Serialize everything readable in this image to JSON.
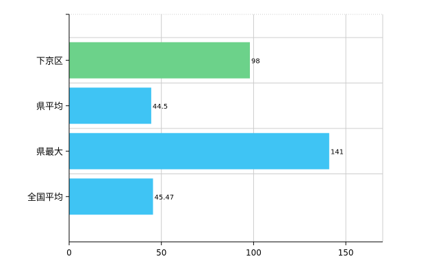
{
  "chart_data": {
    "type": "bar",
    "orientation": "horizontal",
    "categories": [
      "下京区",
      "県平均",
      "県最大",
      "全国平均"
    ],
    "values": [
      98,
      44.5,
      141,
      45.47
    ],
    "value_labels": [
      "98",
      "44.5",
      "141",
      "45.47"
    ],
    "xlim": [
      0,
      170
    ],
    "x_ticks": [
      0,
      50,
      100,
      150
    ],
    "x_tick_labels": [
      "0",
      "50",
      "100",
      "150"
    ],
    "title": "",
    "xlabel": "",
    "ylabel": "",
    "grid": true,
    "grid_style": "x-solid, y-solid, top-dotted",
    "legend": "none",
    "colors": {
      "highlight": "#6cd28a",
      "default": "#3fc4f4",
      "grid": "#cccccc",
      "axis": "#000000"
    },
    "highlight_index": 0
  }
}
